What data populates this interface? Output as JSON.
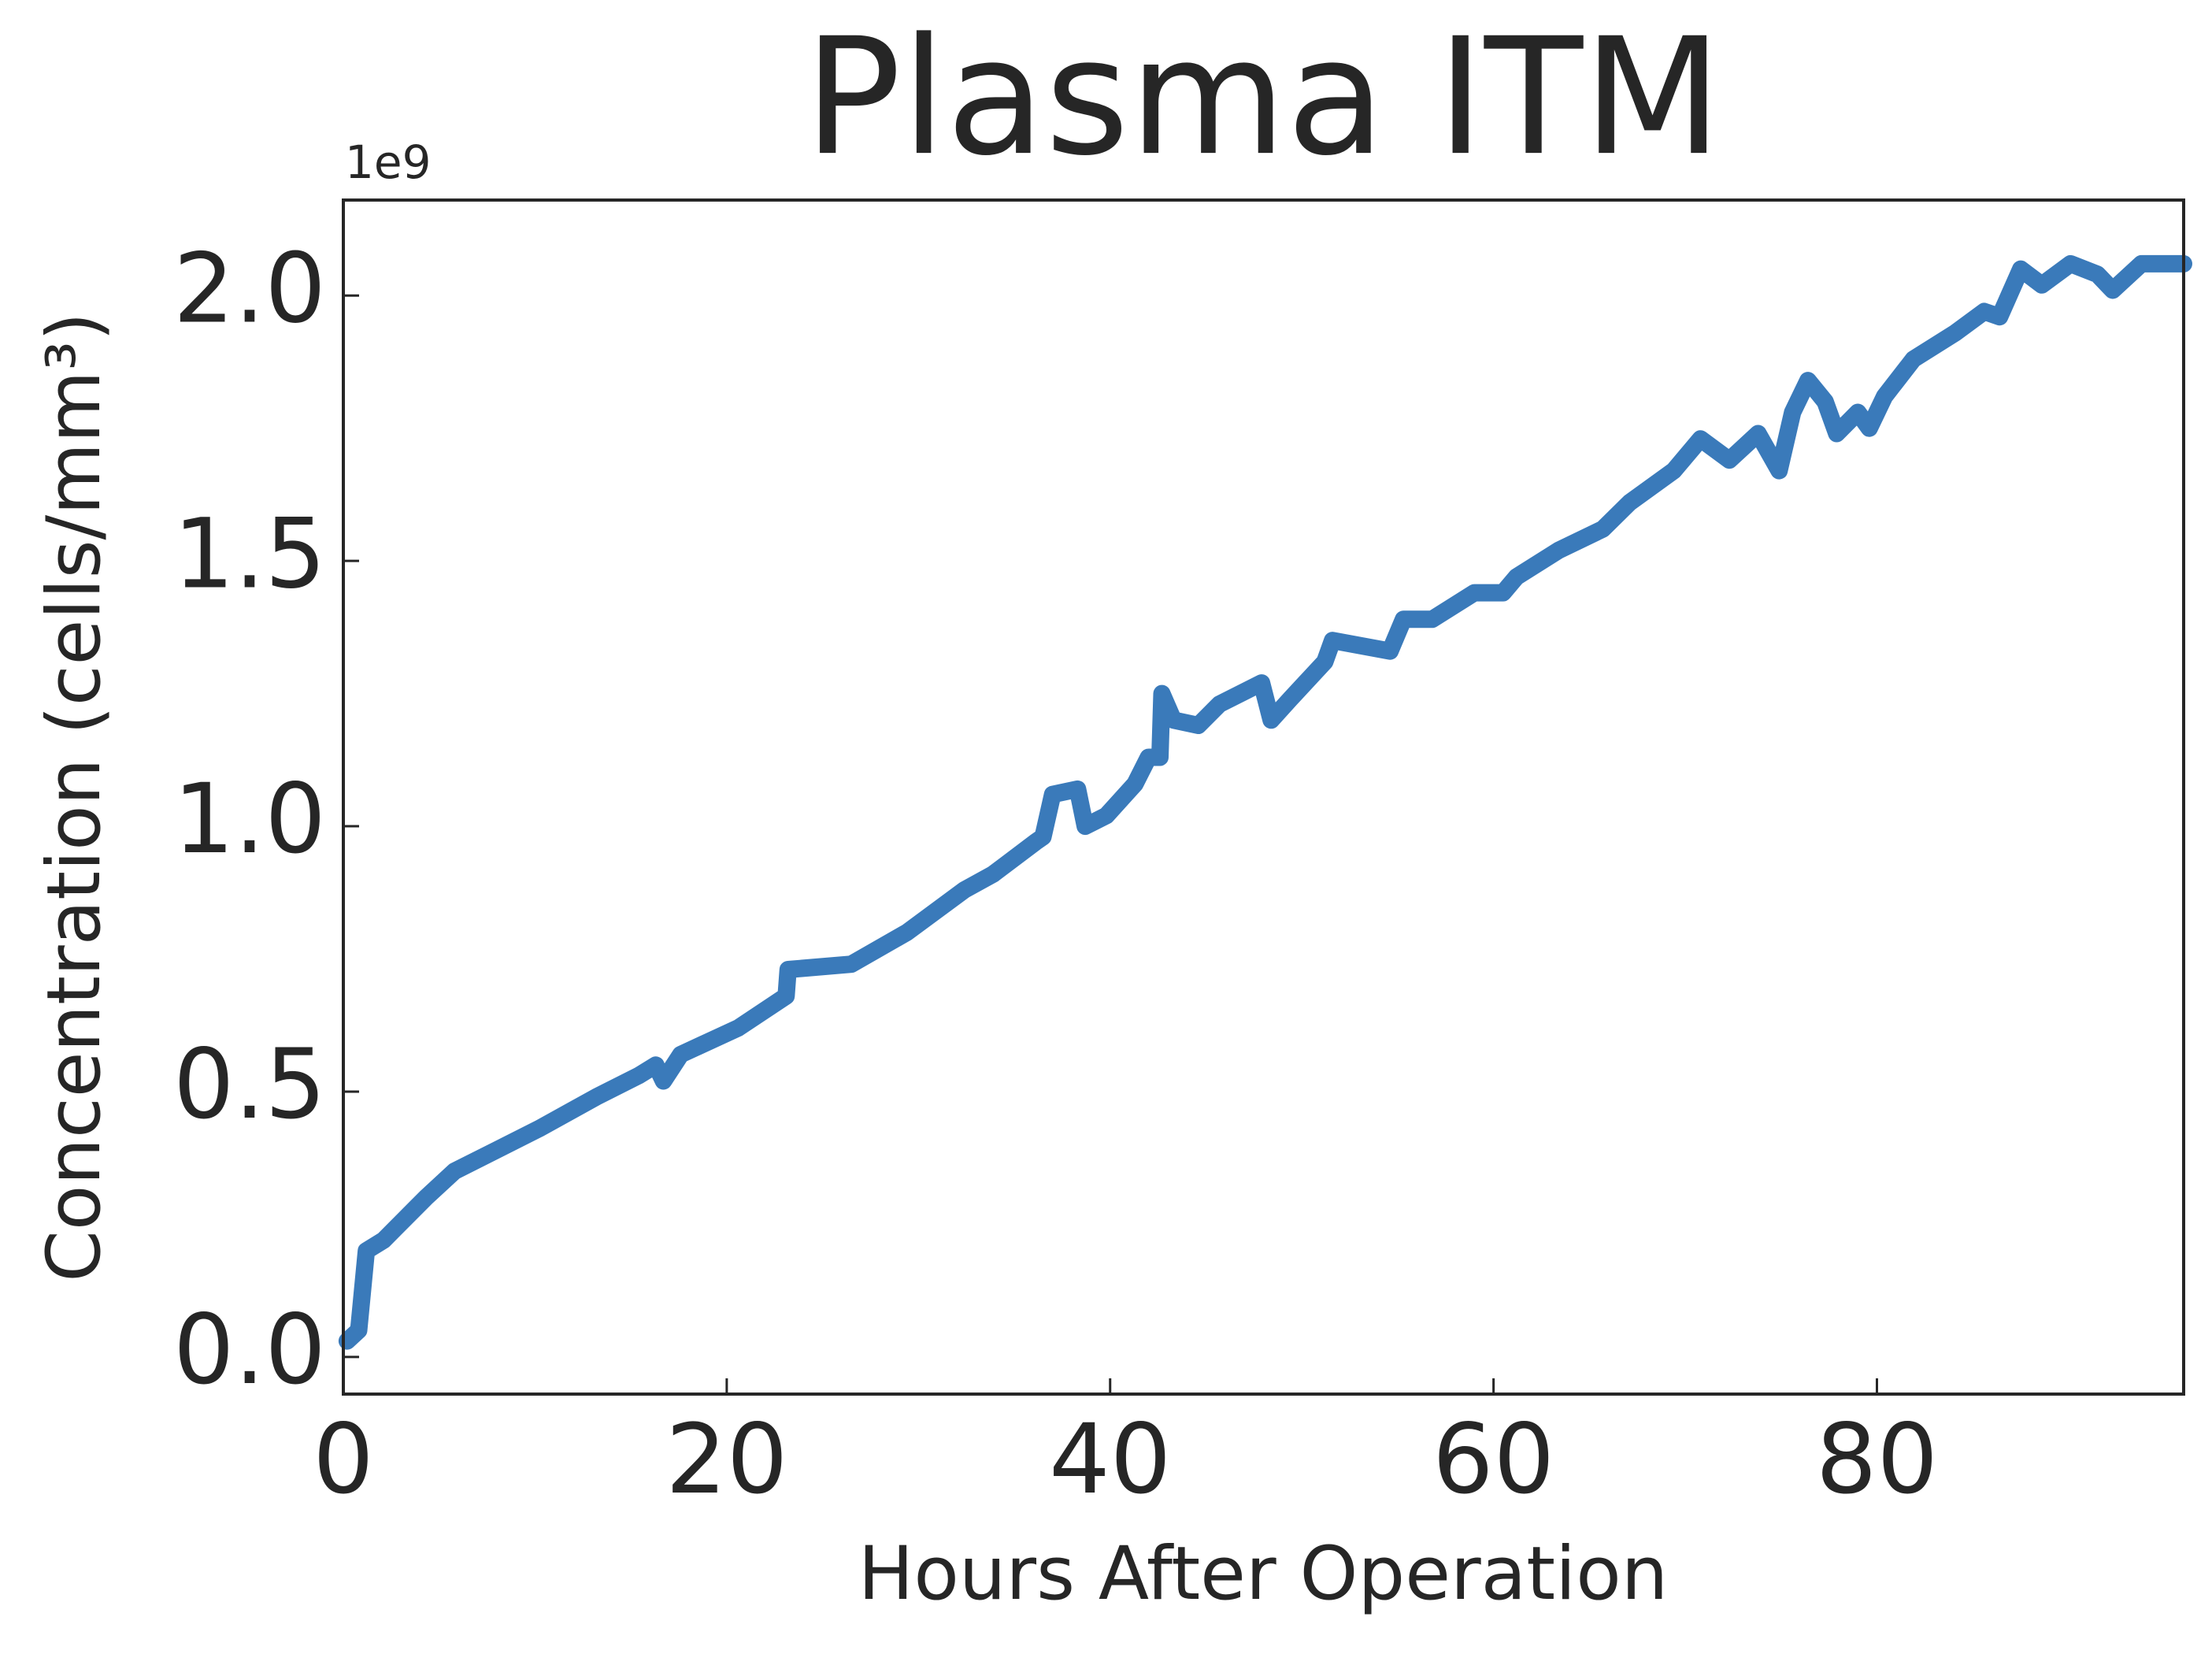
{
  "chart_data": {
    "type": "line",
    "title": "Plasma ITM",
    "x_label": "Hours After Operation",
    "y_label": "Concentration (cells/mm³)",
    "y_offset_label": "1e9",
    "x": [
      0.2,
      0.8,
      1.2,
      2.1,
      4.3,
      5.8,
      8,
      10.2,
      13.2,
      15.4,
      16.3,
      16.7,
      17.6,
      20.6,
      23.1,
      23.2,
      26.5,
      29.4,
      32.4,
      33.9,
      36.1,
      36.5,
      37,
      38.3,
      38.7,
      39.8,
      41.3,
      42,
      42.6,
      42.7,
      43.3,
      44.6,
      45.7,
      47.9,
      48.4,
      49.4,
      51.2,
      51.6,
      54.6,
      55.3,
      56.8,
      59,
      60.5,
      61.2,
      63.4,
      65.7,
      67.1,
      69.4,
      70.8,
      72.3,
      73.8,
      74.9,
      75.6,
      76.4,
      77.3,
      77.9,
      79,
      79.6,
      80.4,
      81.9,
      84.1,
      85.6,
      86.4,
      87.5,
      88.6,
      90.1,
      91.5,
      92.3,
      93.8,
      96
    ],
    "series": [
      {
        "name": "Plasma ITM",
        "color": "#3a7aba",
        "values": [
          0.03,
          0.05,
          0.2,
          0.22,
          0.3,
          0.35,
          0.39,
          0.43,
          0.49,
          0.53,
          0.55,
          0.52,
          0.57,
          0.62,
          0.68,
          0.73,
          0.74,
          0.8,
          0.88,
          0.91,
          0.97,
          0.98,
          1.06,
          1.07,
          1.0,
          1.02,
          1.08,
          1.13,
          1.13,
          1.25,
          1.2,
          1.19,
          1.23,
          1.27,
          1.2,
          1.24,
          1.31,
          1.35,
          1.33,
          1.39,
          1.39,
          1.44,
          1.44,
          1.47,
          1.52,
          1.56,
          1.61,
          1.67,
          1.73,
          1.69,
          1.74,
          1.67,
          1.78,
          1.84,
          1.8,
          1.74,
          1.78,
          1.75,
          1.81,
          1.88,
          1.93,
          1.97,
          1.96,
          2.05,
          2.02,
          2.06,
          2.04,
          2.01,
          2.06,
          2.06
        ]
      }
    ],
    "xlim": [
      0,
      96
    ],
    "ylim": [
      -0.07,
      2.18
    ],
    "xticks": [
      0,
      20,
      40,
      60,
      80
    ],
    "yticks": [
      {
        "value": 0,
        "label": "0.0"
      },
      0.5,
      {
        "value": 1,
        "label": "1.0"
      },
      1.5,
      {
        "value": 2,
        "label": "2.0"
      }
    ],
    "grid": false
  }
}
